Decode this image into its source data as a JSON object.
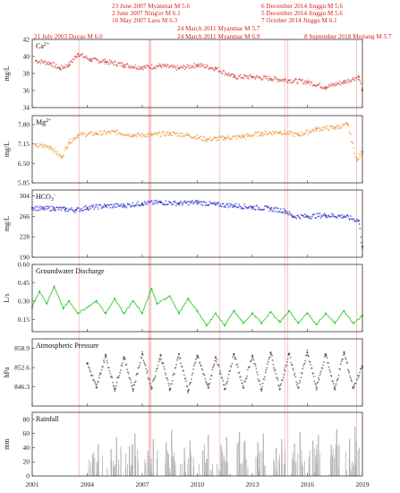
{
  "events": [
    {
      "label": "23 June 2007 Myanmar M 5.6",
      "date": 2007.48
    },
    {
      "label": "2 June 2007 Ning'er M 6.1",
      "date": 2007.42
    },
    {
      "label": "16 May 2007 Laos M 6.3",
      "date": 2007.37
    },
    {
      "label": "21 July 2003 Dayao M 6.0",
      "date": 2003.55
    },
    {
      "label": "24 March 2011 Myanmar M 5.7",
      "date": 2011.23
    },
    {
      "label": "24 March 2011 Myanmar M 6.9",
      "date": 2011.23
    },
    {
      "label": "6 December 2014 Jinggu M 5.6",
      "date": 2014.93
    },
    {
      "label": "5 December 2014 Jinggu M 5.6",
      "date": 2014.93
    },
    {
      "label": "7 October 2014 Jinggu M 6.1",
      "date": 2014.77
    },
    {
      "label": "8 September 2018 Mojiang M 5.7",
      "date": 2018.69
    }
  ],
  "xaxis": {
    "ticks": [
      "2001",
      "2004",
      "2007",
      "2010",
      "2013",
      "2016",
      "2019"
    ],
    "range": [
      2001,
      2019
    ]
  },
  "chart_data": [
    {
      "type": "scatter",
      "title": "Ca2+",
      "ylabel": "mg/L",
      "yticks": [
        "34",
        "36",
        "38",
        "40",
        "42"
      ],
      "ylim": [
        34,
        42
      ],
      "color": "#d9534f",
      "x": [
        2001.2,
        2002.0,
        2002.5,
        2003.0,
        2003.5,
        2004.2,
        2005.0,
        2006.0,
        2007.0,
        2008.0,
        2009.0,
        2010.0,
        2011.0,
        2012.0,
        2013.0,
        2014.0,
        2015.0,
        2016.0,
        2017.0,
        2018.0,
        2018.8,
        2019.0
      ],
      "y": [
        39.5,
        39.2,
        38.6,
        39.0,
        40.3,
        39.6,
        39.4,
        39.0,
        38.7,
        38.9,
        38.6,
        39.0,
        38.6,
        37.6,
        37.6,
        37.4,
        37.2,
        37.0,
        36.4,
        37.0,
        37.6,
        36.0
      ]
    },
    {
      "type": "scatter",
      "title": "Mg2+",
      "ylabel": "mg/L",
      "yticks": [
        "5.85",
        "6.50",
        "7.15",
        "7.80"
      ],
      "ylim": [
        5.85,
        8.1
      ],
      "color": "#f0a24b",
      "x": [
        2001.2,
        2002.0,
        2002.6,
        2003.0,
        2003.5,
        2004.5,
        2005.5,
        2006.5,
        2007.5,
        2008.5,
        2009.5,
        2010.5,
        2011.5,
        2012.5,
        2013.5,
        2014.5,
        2015.5,
        2016.5,
        2017.5,
        2018.2,
        2018.7,
        2019.0
      ],
      "y": [
        7.1,
        7.05,
        6.7,
        7.2,
        7.45,
        7.5,
        7.55,
        7.45,
        7.45,
        7.5,
        7.45,
        7.3,
        7.35,
        7.4,
        7.5,
        7.55,
        7.45,
        7.65,
        7.7,
        7.8,
        6.6,
        6.9
      ]
    },
    {
      "type": "scatter",
      "title": "HCO3-",
      "ylabel": "mg/L",
      "yticks": [
        "190",
        "228",
        "266",
        "304"
      ],
      "ylim": [
        190,
        315
      ],
      "color": "#3a3ad1",
      "x": [
        2001.0,
        2001.6,
        2002.2,
        2002.8,
        2003.4,
        2004.0,
        2005.0,
        2006.0,
        2007.0,
        2008.0,
        2009.0,
        2010.0,
        2011.0,
        2012.0,
        2013.0,
        2014.0,
        2014.8,
        2015.2,
        2016.0,
        2017.0,
        2018.0,
        2018.8,
        2019.0
      ],
      "y": [
        282,
        280,
        281,
        279,
        278,
        282,
        285,
        286,
        290,
        292,
        290,
        292,
        288,
        286,
        283,
        280,
        276,
        266,
        266,
        268,
        266,
        258,
        210
      ]
    },
    {
      "type": "line",
      "title": "Groundwater Discharge",
      "ylabel": "L/s",
      "yticks": [
        "0.15",
        "0.30",
        "0.45",
        "0.60"
      ],
      "ylim": [
        0.05,
        0.6
      ],
      "color": "#33cc33",
      "x": [
        2001.0,
        2001.4,
        2001.8,
        2002.2,
        2002.7,
        2003.0,
        2003.5,
        2004.5,
        2005.0,
        2005.5,
        2006.0,
        2006.5,
        2007.0,
        2007.5,
        2007.8,
        2008.5,
        2009.0,
        2009.5,
        2010.0,
        2010.5,
        2011.0,
        2011.5,
        2012.0,
        2012.5,
        2013.0,
        2013.5,
        2014.0,
        2014.5,
        2015.0,
        2015.5,
        2016.0,
        2016.5,
        2017.0,
        2017.5,
        2018.0,
        2018.5,
        2019.0
      ],
      "y": [
        0.25,
        0.38,
        0.28,
        0.42,
        0.24,
        0.3,
        0.2,
        0.3,
        0.2,
        0.32,
        0.2,
        0.3,
        0.2,
        0.4,
        0.28,
        0.34,
        0.2,
        0.32,
        0.22,
        0.1,
        0.2,
        0.1,
        0.22,
        0.12,
        0.2,
        0.12,
        0.21,
        0.13,
        0.22,
        0.12,
        0.2,
        0.11,
        0.2,
        0.12,
        0.22,
        0.12,
        0.18
      ]
    },
    {
      "type": "scatter",
      "title": "Atmospheric Pressure",
      "ylabel": "hPa",
      "yticks": [
        "846.3",
        "852.6",
        "858.9"
      ],
      "ylim": [
        840.0,
        862.0
      ],
      "color": "#555555",
      "x": [
        2004.0,
        2004.5,
        2005.0,
        2005.5,
        2006.0,
        2006.5,
        2007.0,
        2007.5,
        2008.0,
        2008.5,
        2009.0,
        2009.5,
        2010.0,
        2010.6,
        2011.0,
        2011.5,
        2012.0,
        2012.5,
        2013.0,
        2013.5,
        2014.0,
        2014.5,
        2015.0,
        2015.5,
        2016.0,
        2016.5,
        2017.0,
        2017.5,
        2018.0,
        2018.5,
        2019.0
      ],
      "y": [
        854.0,
        846.0,
        856.5,
        845.5,
        856.0,
        845.5,
        857.0,
        846.0,
        856.5,
        845.5,
        857.0,
        845.0,
        856.5,
        846.0,
        856.0,
        845.5,
        857.0,
        846.0,
        856.5,
        845.5,
        857.5,
        845.5,
        857.0,
        846.0,
        857.5,
        846.0,
        857.0,
        845.5,
        857.5,
        846.0,
        853.0
      ]
    },
    {
      "type": "bar",
      "title": "Rainfall",
      "ylabel": "mm",
      "yticks": [
        "0",
        "20",
        "40",
        "60",
        "80"
      ],
      "ylim": [
        0,
        90
      ],
      "color": "#b3b3b3",
      "x": [
        2004.3,
        2004.6,
        2005.3,
        2005.6,
        2006.3,
        2006.6,
        2007.3,
        2007.6,
        2008.3,
        2008.6,
        2009.3,
        2009.6,
        2010.3,
        2010.6,
        2011.3,
        2011.6,
        2012.3,
        2012.6,
        2013.3,
        2013.6,
        2014.3,
        2014.6,
        2015.3,
        2015.6,
        2016.3,
        2016.6,
        2017.3,
        2017.6,
        2018.3,
        2018.6
      ],
      "y": [
        30,
        45,
        38,
        55,
        42,
        60,
        35,
        52,
        48,
        65,
        40,
        50,
        36,
        58,
        44,
        55,
        62,
        50,
        48,
        60,
        40,
        52,
        46,
        62,
        50,
        58,
        44,
        66,
        52,
        70
      ]
    }
  ]
}
